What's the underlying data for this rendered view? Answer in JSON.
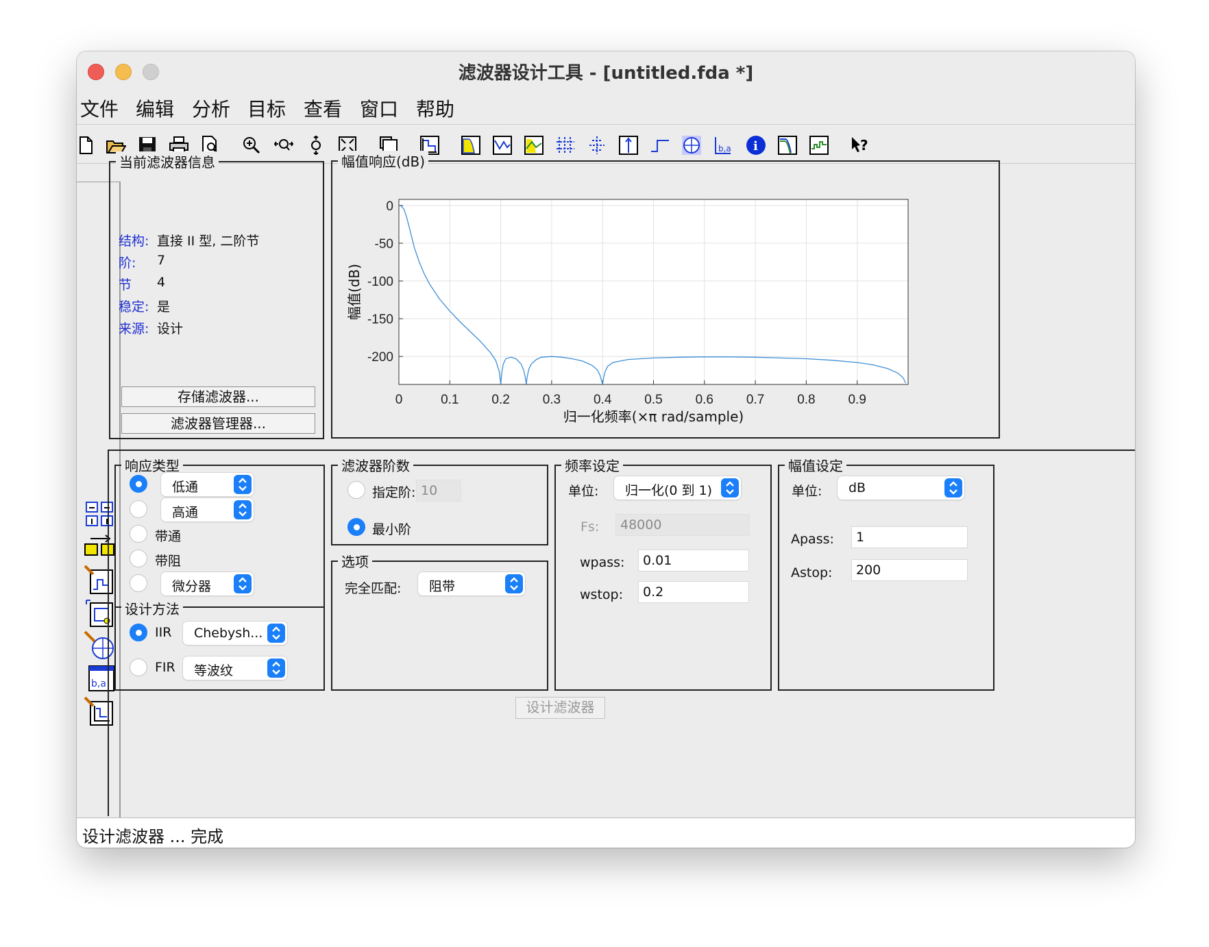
{
  "window": {
    "title": "滤波器设计工具 - [untitled.fda *]"
  },
  "menu": [
    "文件",
    "编辑",
    "分析",
    "目标",
    "查看",
    "窗口",
    "帮助"
  ],
  "toolbar_icons": [
    "new-icon",
    "open-icon",
    "save-icon",
    "print-icon",
    "print-preview-icon",
    "zoom-in-icon",
    "zoom-x-icon",
    "zoom-y-icon",
    "full-view-icon",
    "new-figure-icon",
    "filter-specs-icon",
    "magnitude-response-icon",
    "phase-response-icon",
    "magnitude-phase-icon",
    "group-delay-icon",
    "phase-delay-icon",
    "impulse-response-icon",
    "step-response-icon",
    "pole-zero-icon",
    "filter-coefficients-icon",
    "filter-info-icon",
    "magnitude-estimate-icon",
    "round-off-noise-icon",
    "whats-this-icon"
  ],
  "side_icons": [
    "transform-filter-icon",
    "convert-structure-icon",
    "import-filter-icon",
    "design-filter-icon",
    "pole-zero-editor-icon",
    "multirate-icon",
    "realize-model-icon"
  ],
  "filter_info": {
    "legend": "当前滤波器信息",
    "rows": [
      {
        "key": "结构:",
        "value": "直接 II 型, 二阶节"
      },
      {
        "key": "阶:",
        "value": "7"
      },
      {
        "key": "节",
        "value": "4"
      },
      {
        "key": "稳定:",
        "value": "是"
      },
      {
        "key": "来源:",
        "value": "设计"
      }
    ],
    "store_button": "存储滤波器...",
    "manager_button": "滤波器管理器..."
  },
  "plot": {
    "legend": "幅值响应(dB)"
  },
  "chart_data": {
    "type": "line",
    "xlabel": "归一化频率(×π rad/sample)",
    "ylabel": "幅值(dB)",
    "xlim": [
      0,
      1
    ],
    "ylim": [
      -237,
      8
    ],
    "xticks": [
      "0",
      "0.1",
      "0.2",
      "0.3",
      "0.4",
      "0.5",
      "0.6",
      "0.7",
      "0.8",
      "0.9"
    ],
    "yticks": [
      "0",
      "-50",
      "-100",
      "-150",
      "-200"
    ],
    "grid": true,
    "color": "#3d8fd6",
    "x": [
      0,
      0.002,
      0.005,
      0.01,
      0.015,
      0.02,
      0.03,
      0.04,
      0.05,
      0.06,
      0.08,
      0.1,
      0.12,
      0.14,
      0.16,
      0.18,
      0.19,
      0.197,
      0.2,
      0.202,
      0.205,
      0.21,
      0.22,
      0.23,
      0.24,
      0.245,
      0.248,
      0.25,
      0.252,
      0.255,
      0.26,
      0.27,
      0.28,
      0.3,
      0.32,
      0.34,
      0.36,
      0.38,
      0.39,
      0.395,
      0.4,
      0.402,
      0.405,
      0.41,
      0.42,
      0.45,
      0.5,
      0.55,
      0.6,
      0.65,
      0.7,
      0.75,
      0.8,
      0.85,
      0.9,
      0.93,
      0.96,
      0.98,
      0.99,
      0.995
    ],
    "y": [
      0,
      0,
      -1,
      -5,
      -15,
      -28,
      -55,
      -75,
      -91,
      -104,
      -124,
      -140,
      -154,
      -167,
      -180,
      -195,
      -205,
      -220,
      -237,
      -222,
      -210,
      -203,
      -201,
      -203,
      -210,
      -218,
      -227,
      -237,
      -227,
      -217,
      -210,
      -204,
      -201,
      -200,
      -201,
      -203,
      -206,
      -212,
      -218,
      -225,
      -237,
      -228,
      -220,
      -213,
      -208,
      -204,
      -202,
      -201,
      -200.5,
      -200.5,
      -201,
      -202,
      -203,
      -205,
      -208,
      -211,
      -216,
      -222,
      -228,
      -235
    ]
  },
  "response_type": {
    "legend": "响应类型",
    "options": [
      {
        "label": "低通",
        "popup": true,
        "selected": true
      },
      {
        "label": "高通",
        "popup": true,
        "selected": false
      },
      {
        "label": "带通",
        "popup": false,
        "selected": false
      },
      {
        "label": "带阻",
        "popup": false,
        "selected": false
      },
      {
        "label": "微分器",
        "popup": true,
        "selected": false
      }
    ]
  },
  "design_method": {
    "legend": "设计方法",
    "iir_label": "IIR",
    "iir_value": "Chebysh...",
    "fir_label": "FIR",
    "fir_value": "等波纹",
    "selected": "IIR"
  },
  "filter_order": {
    "legend": "滤波器阶数",
    "specify_label": "指定阶:",
    "specify_value": "10",
    "minimum_label": "最小阶",
    "selected": "minimum"
  },
  "options": {
    "legend": "选项",
    "match_label": "完全匹配:",
    "match_value": "阻带"
  },
  "freq_spec": {
    "legend": "频率设定",
    "units_label": "单位:",
    "units_value": "归一化(0 到 1)",
    "fs_label": "Fs:",
    "fs_value": "48000",
    "wpass_label": "wpass:",
    "wpass_value": "0.01",
    "wstop_label": "wstop:",
    "wstop_value": "0.2"
  },
  "mag_spec": {
    "legend": "幅值设定",
    "units_label": "单位:",
    "units_value": "dB",
    "apass_label": "Apass:",
    "apass_value": "1",
    "astop_label": "Astop:",
    "astop_value": "200"
  },
  "design_button": "设计滤波器",
  "status": "设计滤波器 ... 完成"
}
